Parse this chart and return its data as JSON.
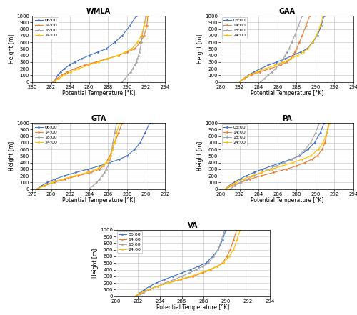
{
  "panels": {
    "WMLA": {
      "title": "WMLA",
      "xlim": [
        280,
        294
      ],
      "xticks": [
        280,
        282,
        284,
        286,
        288,
        290,
        292,
        294
      ],
      "xlabel": "Potential Temperature [°K]",
      "series": {
        "06:00": {
          "color": "#4472c4",
          "marker": "o",
          "theta": [
            282.3,
            282.5,
            282.7,
            283.0,
            283.4,
            283.9,
            284.5,
            285.2,
            286.0,
            286.9,
            287.8,
            288.7,
            289.5,
            290.3,
            291.0
          ],
          "height": [
            0,
            50,
            100,
            150,
            200,
            250,
            300,
            350,
            400,
            450,
            500,
            600,
            700,
            850,
            1000
          ]
        },
        "14:00": {
          "color": "#ed7d31",
          "marker": "o",
          "theta": [
            282.2,
            282.6,
            283.1,
            283.7,
            284.5,
            285.5,
            286.7,
            287.9,
            289.1,
            290.0,
            290.8,
            291.4,
            291.8,
            292.1,
            292.2
          ],
          "height": [
            0,
            50,
            100,
            150,
            200,
            250,
            300,
            350,
            400,
            450,
            500,
            600,
            700,
            850,
            1000
          ]
        },
        "18:00": {
          "color": "#a5a5a5",
          "marker": "o",
          "theta": [
            289.5,
            289.8,
            290.1,
            290.4,
            290.6,
            290.8,
            291.0,
            291.1,
            291.2,
            291.3,
            291.4,
            291.5,
            291.6,
            291.8,
            292.0
          ],
          "height": [
            0,
            50,
            100,
            150,
            200,
            250,
            300,
            350,
            400,
            450,
            500,
            600,
            700,
            850,
            1000
          ]
        },
        "24:00": {
          "color": "#ffc000",
          "marker": "o",
          "theta": [
            282.3,
            282.8,
            283.4,
            284.1,
            284.9,
            285.9,
            287.0,
            288.0,
            289.0,
            289.8,
            290.5,
            291.1,
            291.5,
            291.8,
            292.1
          ],
          "height": [
            0,
            50,
            100,
            150,
            200,
            250,
            300,
            350,
            400,
            450,
            500,
            600,
            700,
            850,
            1000
          ]
        }
      }
    },
    "GAA": {
      "title": "GAA",
      "xlim": [
        280,
        294
      ],
      "xticks": [
        280,
        282,
        284,
        286,
        288,
        290,
        292,
        294
      ],
      "xlabel": "Potential Temperature [°K]",
      "series": {
        "06:00": {
          "color": "#4472c4",
          "marker": "o",
          "theta": [
            282.0,
            282.4,
            282.9,
            283.5,
            284.2,
            285.0,
            285.9,
            286.8,
            287.6,
            288.4,
            289.1,
            289.7,
            290.2,
            290.6,
            290.9
          ],
          "height": [
            0,
            50,
            100,
            150,
            200,
            250,
            300,
            350,
            400,
            450,
            500,
            600,
            700,
            850,
            1000
          ]
        },
        "14:00": {
          "color": "#ed7d31",
          "marker": "o",
          "theta": [
            282.0,
            282.5,
            283.2,
            284.1,
            285.2,
            286.3,
            287.0,
            287.4,
            287.6,
            287.8,
            288.0,
            288.3,
            288.6,
            289.0,
            289.4
          ],
          "height": [
            0,
            50,
            100,
            150,
            200,
            250,
            300,
            350,
            400,
            450,
            500,
            600,
            700,
            850,
            1000
          ]
        },
        "18:00": {
          "color": "#a5a5a5",
          "marker": "o",
          "theta": [
            284.2,
            284.6,
            285.0,
            285.4,
            285.8,
            286.1,
            286.4,
            286.6,
            286.8,
            287.0,
            287.2,
            287.5,
            287.8,
            288.2,
            288.6
          ],
          "height": [
            0,
            50,
            100,
            150,
            200,
            250,
            300,
            350,
            400,
            450,
            500,
            600,
            700,
            850,
            1000
          ]
        },
        "24:00": {
          "color": "#ffc000",
          "marker": "o",
          "theta": [
            282.0,
            282.4,
            283.0,
            283.8,
            284.7,
            285.7,
            286.6,
            287.4,
            288.1,
            288.7,
            289.2,
            289.7,
            290.1,
            290.5,
            290.8
          ],
          "height": [
            0,
            50,
            100,
            150,
            200,
            250,
            300,
            350,
            400,
            450,
            500,
            600,
            700,
            850,
            1000
          ]
        }
      }
    },
    "GTA": {
      "title": "GTA",
      "xlim": [
        278,
        292
      ],
      "xticks": [
        278,
        280,
        282,
        284,
        286,
        288,
        290,
        292
      ],
      "xlabel": "Potential Temperature [°K]",
      "series": {
        "06:00": {
          "color": "#4472c4",
          "marker": "o",
          "theta": [
            278.5,
            279.0,
            279.6,
            280.4,
            281.4,
            282.6,
            283.9,
            285.1,
            286.2,
            287.2,
            288.0,
            288.8,
            289.4,
            289.9,
            290.4
          ],
          "height": [
            0,
            50,
            100,
            150,
            200,
            250,
            300,
            350,
            400,
            450,
            500,
            600,
            700,
            850,
            1000
          ]
        },
        "14:00": {
          "color": "#ed7d31",
          "marker": "o",
          "theta": [
            278.5,
            279.3,
            280.3,
            281.5,
            282.8,
            284.2,
            285.1,
            285.5,
            285.8,
            286.0,
            286.2,
            286.4,
            286.7,
            287.1,
            287.5
          ],
          "height": [
            0,
            50,
            100,
            150,
            200,
            250,
            300,
            350,
            400,
            450,
            500,
            600,
            700,
            850,
            1000
          ]
        },
        "18:00": {
          "color": "#a5a5a5",
          "marker": "o",
          "theta": [
            284.0,
            284.4,
            284.8,
            285.1,
            285.4,
            285.6,
            285.8,
            286.0,
            286.1,
            286.2,
            286.3,
            286.4,
            286.5,
            286.7,
            286.9
          ],
          "height": [
            0,
            50,
            100,
            150,
            200,
            250,
            300,
            350,
            400,
            450,
            500,
            600,
            700,
            850,
            1000
          ]
        },
        "24:00": {
          "color": "#ffc000",
          "marker": "o",
          "theta": [
            278.5,
            279.2,
            280.1,
            281.2,
            282.5,
            283.8,
            284.8,
            285.4,
            285.8,
            286.1,
            286.3,
            286.5,
            286.7,
            286.9,
            287.2
          ],
          "height": [
            0,
            50,
            100,
            150,
            200,
            250,
            300,
            350,
            400,
            450,
            500,
            600,
            700,
            850,
            1000
          ]
        }
      }
    },
    "PA": {
      "title": "PA",
      "xlim": [
        280,
        294
      ],
      "xticks": [
        280,
        282,
        284,
        286,
        288,
        290,
        292,
        294
      ],
      "xlabel": "Potential Temperature [°K]",
      "series": {
        "06:00": {
          "color": "#4472c4",
          "marker": "o",
          "theta": [
            280.5,
            280.9,
            281.4,
            282.0,
            282.7,
            283.5,
            284.4,
            285.4,
            286.4,
            287.4,
            288.3,
            289.2,
            289.9,
            290.5,
            290.9
          ],
          "height": [
            0,
            50,
            100,
            150,
            200,
            250,
            300,
            350,
            400,
            450,
            500,
            600,
            700,
            850,
            1000
          ]
        },
        "14:00": {
          "color": "#ed7d31",
          "marker": "o",
          "theta": [
            280.5,
            281.2,
            282.1,
            283.1,
            284.3,
            285.6,
            286.9,
            288.0,
            288.9,
            289.6,
            290.2,
            290.7,
            291.0,
            291.2,
            291.4
          ],
          "height": [
            0,
            50,
            100,
            150,
            200,
            250,
            300,
            350,
            400,
            450,
            500,
            600,
            700,
            850,
            1000
          ]
        },
        "18:00": {
          "color": "#a5a5a5",
          "marker": "o",
          "theta": [
            281.0,
            281.5,
            282.1,
            282.8,
            283.5,
            284.3,
            285.1,
            285.9,
            286.7,
            287.5,
            288.2,
            288.9,
            289.5,
            290.0,
            290.4
          ],
          "height": [
            0,
            50,
            100,
            150,
            200,
            250,
            300,
            350,
            400,
            450,
            500,
            600,
            700,
            850,
            1000
          ]
        },
        "24:00": {
          "color": "#ffc000",
          "marker": "o",
          "theta": [
            280.5,
            281.0,
            281.6,
            282.4,
            283.3,
            284.3,
            285.4,
            286.5,
            287.6,
            288.6,
            289.5,
            290.3,
            290.8,
            291.2,
            291.5
          ],
          "height": [
            0,
            50,
            100,
            150,
            200,
            250,
            300,
            350,
            400,
            450,
            500,
            600,
            700,
            850,
            1000
          ]
        }
      }
    },
    "VA": {
      "title": "VA",
      "xlim": [
        280,
        294
      ],
      "xticks": [
        280,
        282,
        284,
        286,
        288,
        290,
        292,
        294
      ],
      "xlabel": "Potential Temperature [°K]",
      "series": {
        "06:00": {
          "color": "#4472c4",
          "marker": "o",
          "theta": [
            281.8,
            282.2,
            282.6,
            283.1,
            283.7,
            284.4,
            285.2,
            286.0,
            286.8,
            287.5,
            288.2,
            288.8,
            289.3,
            289.7,
            290.0
          ],
          "height": [
            0,
            50,
            100,
            150,
            200,
            250,
            300,
            350,
            400,
            450,
            500,
            600,
            700,
            850,
            1000
          ]
        },
        "14:00": {
          "color": "#ed7d31",
          "marker": "o",
          "theta": [
            281.8,
            282.3,
            283.0,
            283.8,
            284.8,
            285.9,
            287.0,
            287.9,
            288.6,
            289.2,
            289.7,
            290.1,
            290.4,
            290.7,
            291.0
          ],
          "height": [
            0,
            50,
            100,
            150,
            200,
            250,
            300,
            350,
            400,
            450,
            500,
            600,
            700,
            850,
            1000
          ]
        },
        "18:00": {
          "color": "#a5a5a5",
          "marker": "o",
          "theta": [
            282.0,
            282.5,
            283.1,
            283.8,
            284.5,
            285.3,
            286.0,
            286.7,
            287.3,
            287.9,
            288.4,
            288.9,
            289.3,
            289.6,
            289.9
          ],
          "height": [
            0,
            50,
            100,
            150,
            200,
            250,
            300,
            350,
            400,
            450,
            500,
            600,
            700,
            850,
            1000
          ]
        },
        "24:00": {
          "color": "#ffc000",
          "marker": "o",
          "theta": [
            281.8,
            282.3,
            283.0,
            283.8,
            284.8,
            285.8,
            286.8,
            287.7,
            288.5,
            289.2,
            289.8,
            290.3,
            290.7,
            291.0,
            291.3
          ],
          "height": [
            0,
            50,
            100,
            150,
            200,
            250,
            300,
            350,
            400,
            450,
            500,
            600,
            700,
            850,
            1000
          ]
        }
      }
    }
  },
  "yticks": [
    0,
    100,
    200,
    300,
    400,
    500,
    600,
    700,
    800,
    900,
    1000
  ],
  "ylim": [
    0,
    1000
  ],
  "ylabel": "Height [m]",
  "legend_order": [
    "06:00",
    "14:00",
    "18:00",
    "24:00"
  ],
  "bg_color": "#ffffff",
  "grid_color": "#c0c0c0"
}
